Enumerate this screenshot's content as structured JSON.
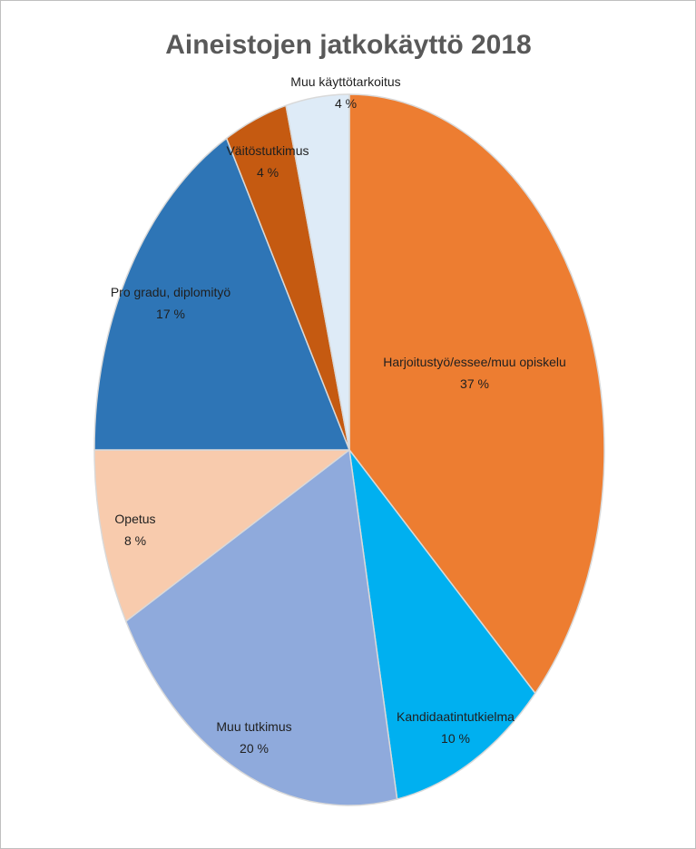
{
  "chart_data": {
    "type": "pie",
    "title": "Aineistojen jatkokäyttö 2018",
    "slices": [
      {
        "label": "Harjoitustyö/essee/muu opiskelu",
        "value_label": "37 %",
        "value": 37,
        "color": "#ED7D31"
      },
      {
        "label": "Kandidaatintutkielma",
        "value_label": "10 %",
        "value": 10,
        "color": "#00B0F0"
      },
      {
        "label": "Muu tutkimus",
        "value_label": "20 %",
        "value": 20,
        "color": "#8FAADC"
      },
      {
        "label": "Opetus",
        "value_label": "8 %",
        "value": 8,
        "color": "#F8CBAD"
      },
      {
        "label": "Pro gradu, diplomityö",
        "value_label": "17 %",
        "value": 17,
        "color": "#2E75B6"
      },
      {
        "label": "Väitöstutkimus",
        "value_label": "4 %",
        "value": 4,
        "color": "#C55A11"
      },
      {
        "label": "Muu käyttötarkoitus",
        "value_label": "4 %",
        "value": 4,
        "color": "#DEEBF7"
      }
    ]
  }
}
